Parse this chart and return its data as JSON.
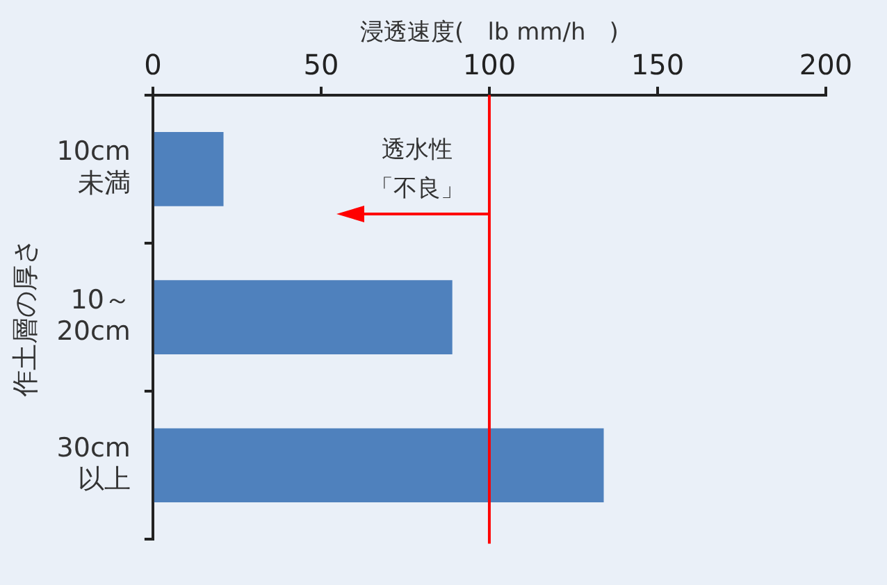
{
  "chart_data": {
    "type": "bar",
    "orientation": "horizontal",
    "xlabel": "浸透速度(　lb mm/h　)",
    "ylabel": "作土層の厚さ",
    "categories": [
      "10cm\n未満",
      "10～\n20cm",
      "30cm\n以上"
    ],
    "values": [
      21,
      89,
      134
    ],
    "color": "#4f81bd",
    "xlim": [
      0,
      200
    ],
    "xticks": [
      0,
      50,
      100,
      150,
      200
    ],
    "grid": false,
    "legend": false,
    "ref_lines": [
      {
        "axis": "x",
        "value": 100,
        "label": "透水性「不良」",
        "color": "#ff0000"
      }
    ]
  }
}
